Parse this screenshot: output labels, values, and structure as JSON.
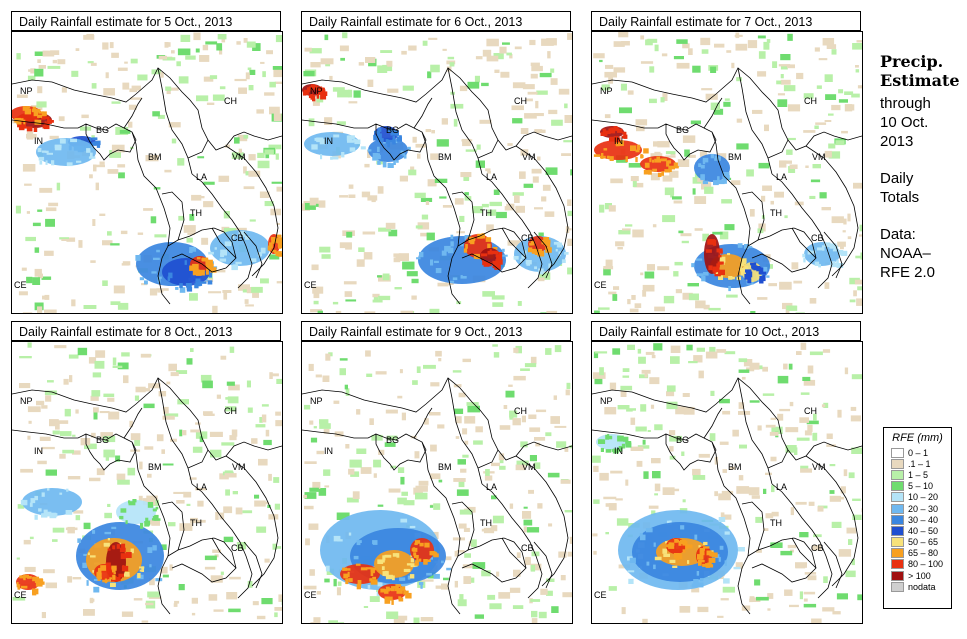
{
  "panels": [
    {
      "title": "Daily Rainfall estimate for  5 Oct., 2013",
      "date": "5 Oct."
    },
    {
      "title": "Daily Rainfall estimate for  6 Oct., 2013",
      "date": "6 Oct."
    },
    {
      "title": "Daily Rainfall estimate for  7 Oct., 2013",
      "date": "7 Oct."
    },
    {
      "title": "Daily Rainfall estimate for  8 Oct., 2013",
      "date": "8 Oct."
    },
    {
      "title": "Daily Rainfall estimate for  9 Oct., 2013",
      "date": "9 Oct."
    },
    {
      "title": "Daily Rainfall estimate for  10 Oct., 2013",
      "date": "10 Oct."
    }
  ],
  "country_labels": [
    "NP",
    "CH",
    "IN",
    "BG",
    "BM",
    "VM",
    "LA",
    "TH",
    "CB",
    "CE"
  ],
  "sidebar": {
    "heading1": "Precip.",
    "heading2": "Estimate",
    "through": "through",
    "date": "10 Oct.",
    "year": "2013",
    "daily1": "Daily",
    "daily2": "Totals",
    "data1": "Data:",
    "data2": "NOAA–",
    "data3": "RFE 2.0"
  },
  "legend": {
    "title": "RFE (mm)",
    "items": [
      {
        "label": "0 – 1",
        "color": "#ffffff"
      },
      {
        "label": ".1 – 1",
        "color": "#e8d9bf"
      },
      {
        "label": "1 – 5",
        "color": "#b8f0a8"
      },
      {
        "label": "5 – 10",
        "color": "#6fdc6f"
      },
      {
        "label": "10 – 20",
        "color": "#b4e4f8"
      },
      {
        "label": "20 – 30",
        "color": "#6fb8f0"
      },
      {
        "label": "30 – 40",
        "color": "#3a86e0"
      },
      {
        "label": "40 – 50",
        "color": "#1f4fd0"
      },
      {
        "label": "50 – 65",
        "color": "#f8e27a"
      },
      {
        "label": "65 – 80",
        "color": "#f8a020"
      },
      {
        "label": "80 – 100",
        "color": "#e83010"
      },
      {
        "label": "> 100",
        "color": "#a01010"
      },
      {
        "label": "nodata",
        "color": "#cfcfcf"
      }
    ]
  }
}
